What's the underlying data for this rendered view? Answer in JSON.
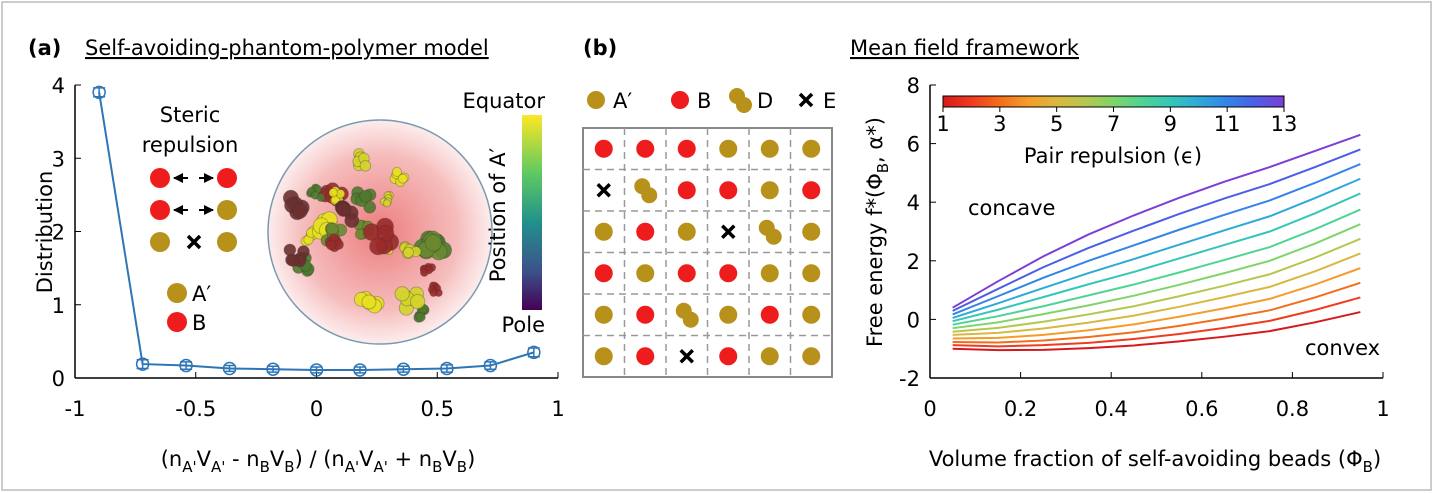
{
  "chart_data": [
    {
      "type": "line",
      "panel": "(a)",
      "title": "Self-avoiding-phantom-polymer model",
      "ylabel": "Distribution",
      "xlabel": [
        "(n",
        "A'",
        "V",
        "A'",
        " - n",
        "B",
        "V",
        "B",
        ") / (n",
        "A'",
        "V",
        "A'",
        " + n",
        "B",
        "V",
        "B",
        ")"
      ],
      "x": [
        -0.9,
        -0.72,
        -0.54,
        -0.36,
        -0.18,
        0,
        0.18,
        0.36,
        0.54,
        0.72,
        0.9
      ],
      "values": [
        3.9,
        0.19,
        0.17,
        0.13,
        0.12,
        0.11,
        0.11,
        0.12,
        0.13,
        0.17,
        0.35
      ],
      "errors": [
        0.06,
        0.06,
        0.05,
        0.04,
        0.04,
        0.04,
        0.04,
        0.04,
        0.05,
        0.05,
        0.06
      ],
      "color": "#2e75b6",
      "xlim": [
        -1,
        1
      ],
      "xticks": [
        -1,
        -0.5,
        0,
        0.5,
        1
      ],
      "ylim": [
        0,
        4
      ],
      "yticks": [
        0,
        1,
        2,
        3,
        4
      ],
      "inset": {
        "title": [
          "Steric",
          "repulsion"
        ],
        "legend": [
          {
            "name": "A′",
            "color": "#b8911a"
          },
          {
            "name": "B",
            "color": "#ee1c1c"
          }
        ],
        "colorbar": {
          "top": "Equator",
          "label": "Position of A′",
          "bottom": "Pole"
        }
      }
    },
    {
      "type": "lattice",
      "panel": "(b)",
      "legend": [
        {
          "name": "A′",
          "color": "#b8911a"
        },
        {
          "name": "B",
          "color": "#ee1c1c"
        },
        {
          "name": "D",
          "color": "#b8911a"
        },
        {
          "name": "E",
          "color": "#000000"
        }
      ],
      "cells": [
        [
          "B",
          "B",
          "B",
          "A′",
          "A′",
          "A′"
        ],
        [
          "E",
          "D",
          "B",
          "B",
          "A′",
          "B"
        ],
        [
          "A′",
          "B",
          "A′",
          "E",
          "D",
          "A′"
        ],
        [
          "B",
          "A′",
          "B",
          "B",
          "A′",
          "A′"
        ],
        [
          "A′",
          "B",
          "D",
          "A′",
          "B",
          "A′"
        ],
        [
          "A′",
          "B",
          "E",
          "B",
          "A′",
          "A′"
        ]
      ]
    },
    {
      "type": "line",
      "title": "Mean field framework",
      "ylabel": [
        "Free energy f*(Φ",
        "B",
        ", α*)"
      ],
      "xlabel": [
        "Volume fraction of self-avoiding beads (Φ",
        "B",
        ")"
      ],
      "x": [
        0.05,
        0.15,
        0.25,
        0.35,
        0.45,
        0.55,
        0.65,
        0.75,
        0.85,
        0.95
      ],
      "series": [
        {
          "color": "#d7191c",
          "values": [
            -1.0,
            -1.05,
            -1.04,
            -0.98,
            -0.89,
            -0.75,
            -0.59,
            -0.4,
            -0.1,
            0.25
          ]
        },
        {
          "color": "#ef3b1f",
          "values": [
            -0.88,
            -0.92,
            -0.88,
            -0.8,
            -0.67,
            -0.5,
            -0.29,
            -0.05,
            0.32,
            0.75
          ]
        },
        {
          "color": "#f46d1b",
          "values": [
            -0.77,
            -0.79,
            -0.72,
            -0.6,
            -0.44,
            -0.22,
            0.03,
            0.31,
            0.75,
            1.25
          ]
        },
        {
          "color": "#f59d2a",
          "values": [
            -0.65,
            -0.63,
            -0.53,
            -0.37,
            -0.17,
            0.09,
            0.38,
            0.7,
            1.19,
            1.75
          ]
        },
        {
          "color": "#d9b740",
          "values": [
            -0.53,
            -0.46,
            -0.31,
            -0.11,
            0.13,
            0.43,
            0.76,
            1.11,
            1.64,
            2.25
          ]
        },
        {
          "color": "#b5c74f",
          "values": [
            -0.42,
            -0.29,
            -0.08,
            0.17,
            0.45,
            0.79,
            1.15,
            1.54,
            2.11,
            2.75
          ]
        },
        {
          "color": "#7fd46a",
          "values": [
            -0.3,
            -0.1,
            0.18,
            0.48,
            0.81,
            1.18,
            1.58,
            2.0,
            2.59,
            3.25
          ]
        },
        {
          "color": "#4fd493",
          "values": [
            -0.18,
            0.11,
            0.45,
            0.82,
            1.19,
            1.6,
            2.03,
            2.47,
            3.08,
            3.75
          ]
        },
        {
          "color": "#35c6b8",
          "values": [
            -0.06,
            0.33,
            0.76,
            1.2,
            1.62,
            2.08,
            2.54,
            3.0,
            3.62,
            4.3
          ]
        },
        {
          "color": "#2fa9d8",
          "values": [
            0.05,
            0.55,
            1.07,
            1.58,
            2.06,
            2.55,
            3.04,
            3.52,
            4.14,
            4.8
          ]
        },
        {
          "color": "#3384e8",
          "values": [
            0.17,
            0.79,
            1.42,
            2.0,
            2.53,
            3.06,
            3.57,
            4.06,
            4.66,
            5.3
          ]
        },
        {
          "color": "#4d5ee6",
          "values": [
            0.29,
            1.04,
            1.78,
            2.44,
            3.03,
            3.6,
            4.13,
            4.62,
            5.2,
            5.8
          ]
        },
        {
          "color": "#7b3fd6",
          "values": [
            0.4,
            1.3,
            2.15,
            2.9,
            3.55,
            4.15,
            4.7,
            5.2,
            5.75,
            6.3
          ]
        }
      ],
      "xlim": [
        0,
        1
      ],
      "xticks": [
        0,
        0.2,
        0.4,
        0.6,
        0.8,
        1
      ],
      "ylim": [
        -2,
        8
      ],
      "yticks": [
        -2,
        0,
        2,
        4,
        6,
        8
      ],
      "colorbar": {
        "label": "Pair repulsion (ϵ)",
        "lim": [
          1,
          13
        ],
        "ticks": [
          1,
          3,
          5,
          7,
          9,
          11,
          13
        ]
      },
      "annotations": [
        {
          "text": "concave",
          "color": "#7b3fd6"
        },
        {
          "text": "convex",
          "color": "#c00000"
        }
      ]
    }
  ]
}
